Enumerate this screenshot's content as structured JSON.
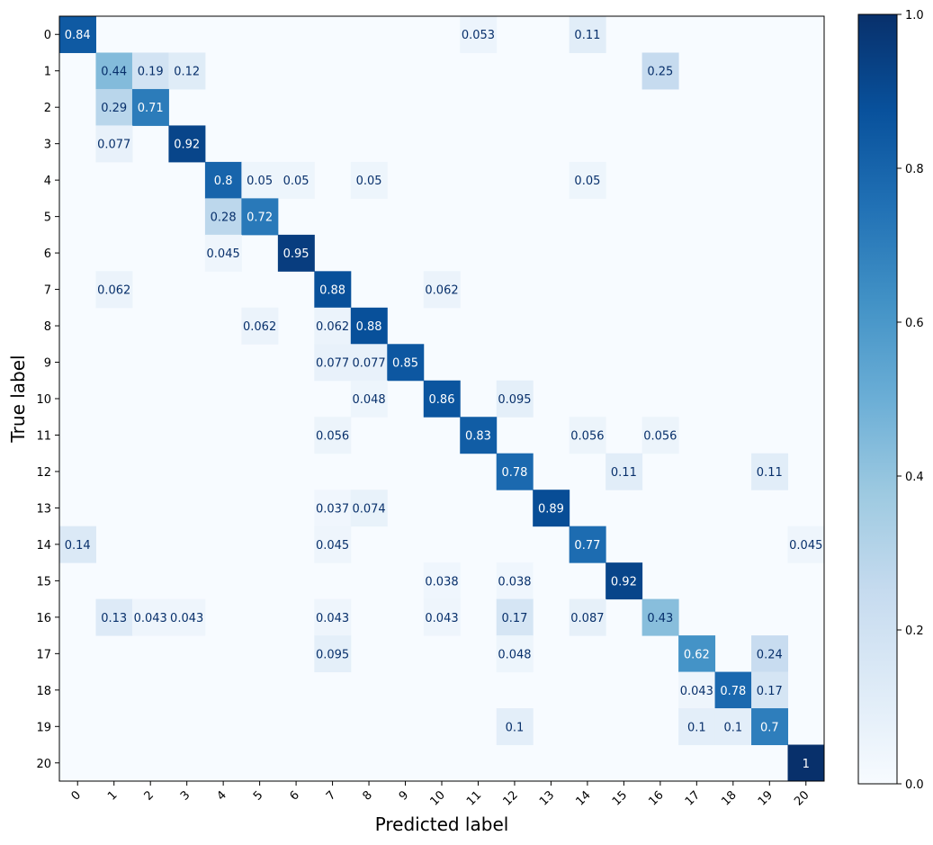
{
  "chart_data": {
    "type": "heatmap",
    "title": "",
    "xlabel": "Predicted label",
    "ylabel": "True label",
    "x_categories": [
      "0",
      "1",
      "2",
      "3",
      "4",
      "5",
      "6",
      "7",
      "8",
      "9",
      "10",
      "11",
      "12",
      "13",
      "14",
      "15",
      "16",
      "17",
      "18",
      "19",
      "20"
    ],
    "y_categories": [
      "0",
      "1",
      "2",
      "3",
      "4",
      "5",
      "6",
      "7",
      "8",
      "9",
      "10",
      "11",
      "12",
      "13",
      "14",
      "15",
      "16",
      "17",
      "18",
      "19",
      "20"
    ],
    "colormap": "Blues",
    "colormap_low": "#f7fbff",
    "colormap_high": "#08306b",
    "vmin": 0.0,
    "vmax": 1.0,
    "colorbar_ticks": [
      "0.0",
      "0.2",
      "0.4",
      "0.6",
      "0.8",
      "1.0"
    ],
    "cells": [
      {
        "row": 0,
        "col": 0,
        "value": 0.84,
        "label": "0.84"
      },
      {
        "row": 0,
        "col": 11,
        "value": 0.053,
        "label": "0.053"
      },
      {
        "row": 0,
        "col": 14,
        "value": 0.11,
        "label": "0.11"
      },
      {
        "row": 1,
        "col": 1,
        "value": 0.44,
        "label": "0.44"
      },
      {
        "row": 1,
        "col": 2,
        "value": 0.19,
        "label": "0.19"
      },
      {
        "row": 1,
        "col": 3,
        "value": 0.12,
        "label": "0.12"
      },
      {
        "row": 1,
        "col": 16,
        "value": 0.25,
        "label": "0.25"
      },
      {
        "row": 2,
        "col": 1,
        "value": 0.29,
        "label": "0.29"
      },
      {
        "row": 2,
        "col": 2,
        "value": 0.71,
        "label": "0.71"
      },
      {
        "row": 3,
        "col": 1,
        "value": 0.077,
        "label": "0.077"
      },
      {
        "row": 3,
        "col": 3,
        "value": 0.92,
        "label": "0.92"
      },
      {
        "row": 4,
        "col": 4,
        "value": 0.8,
        "label": "0.8"
      },
      {
        "row": 4,
        "col": 5,
        "value": 0.05,
        "label": "0.05"
      },
      {
        "row": 4,
        "col": 6,
        "value": 0.05,
        "label": "0.05"
      },
      {
        "row": 4,
        "col": 8,
        "value": 0.05,
        "label": "0.05"
      },
      {
        "row": 4,
        "col": 14,
        "value": 0.05,
        "label": "0.05"
      },
      {
        "row": 5,
        "col": 4,
        "value": 0.28,
        "label": "0.28"
      },
      {
        "row": 5,
        "col": 5,
        "value": 0.72,
        "label": "0.72"
      },
      {
        "row": 6,
        "col": 4,
        "value": 0.045,
        "label": "0.045"
      },
      {
        "row": 6,
        "col": 6,
        "value": 0.95,
        "label": "0.95"
      },
      {
        "row": 7,
        "col": 1,
        "value": 0.062,
        "label": "0.062"
      },
      {
        "row": 7,
        "col": 7,
        "value": 0.88,
        "label": "0.88"
      },
      {
        "row": 7,
        "col": 10,
        "value": 0.062,
        "label": "0.062"
      },
      {
        "row": 8,
        "col": 5,
        "value": 0.062,
        "label": "0.062"
      },
      {
        "row": 8,
        "col": 7,
        "value": 0.062,
        "label": "0.062"
      },
      {
        "row": 8,
        "col": 8,
        "value": 0.88,
        "label": "0.88"
      },
      {
        "row": 9,
        "col": 7,
        "value": 0.077,
        "label": "0.077"
      },
      {
        "row": 9,
        "col": 8,
        "value": 0.077,
        "label": "0.077"
      },
      {
        "row": 9,
        "col": 9,
        "value": 0.85,
        "label": "0.85"
      },
      {
        "row": 10,
        "col": 8,
        "value": 0.048,
        "label": "0.048"
      },
      {
        "row": 10,
        "col": 10,
        "value": 0.86,
        "label": "0.86"
      },
      {
        "row": 10,
        "col": 12,
        "value": 0.095,
        "label": "0.095"
      },
      {
        "row": 11,
        "col": 7,
        "value": 0.056,
        "label": "0.056"
      },
      {
        "row": 11,
        "col": 11,
        "value": 0.83,
        "label": "0.83"
      },
      {
        "row": 11,
        "col": 14,
        "value": 0.056,
        "label": "0.056"
      },
      {
        "row": 11,
        "col": 16,
        "value": 0.056,
        "label": "0.056"
      },
      {
        "row": 12,
        "col": 12,
        "value": 0.78,
        "label": "0.78"
      },
      {
        "row": 12,
        "col": 15,
        "value": 0.11,
        "label": "0.11"
      },
      {
        "row": 12,
        "col": 19,
        "value": 0.11,
        "label": "0.11"
      },
      {
        "row": 13,
        "col": 7,
        "value": 0.037,
        "label": "0.037"
      },
      {
        "row": 13,
        "col": 8,
        "value": 0.074,
        "label": "0.074"
      },
      {
        "row": 13,
        "col": 13,
        "value": 0.89,
        "label": "0.89"
      },
      {
        "row": 14,
        "col": 0,
        "value": 0.14,
        "label": "0.14"
      },
      {
        "row": 14,
        "col": 7,
        "value": 0.045,
        "label": "0.045"
      },
      {
        "row": 14,
        "col": 14,
        "value": 0.77,
        "label": "0.77"
      },
      {
        "row": 14,
        "col": 20,
        "value": 0.045,
        "label": "0.045"
      },
      {
        "row": 15,
        "col": 10,
        "value": 0.038,
        "label": "0.038"
      },
      {
        "row": 15,
        "col": 12,
        "value": 0.038,
        "label": "0.038"
      },
      {
        "row": 15,
        "col": 15,
        "value": 0.92,
        "label": "0.92"
      },
      {
        "row": 16,
        "col": 1,
        "value": 0.13,
        "label": "0.13"
      },
      {
        "row": 16,
        "col": 2,
        "value": 0.043,
        "label": "0.043"
      },
      {
        "row": 16,
        "col": 3,
        "value": 0.043,
        "label": "0.043"
      },
      {
        "row": 16,
        "col": 7,
        "value": 0.043,
        "label": "0.043"
      },
      {
        "row": 16,
        "col": 10,
        "value": 0.043,
        "label": "0.043"
      },
      {
        "row": 16,
        "col": 12,
        "value": 0.17,
        "label": "0.17"
      },
      {
        "row": 16,
        "col": 14,
        "value": 0.087,
        "label": "0.087"
      },
      {
        "row": 16,
        "col": 16,
        "value": 0.43,
        "label": "0.43"
      },
      {
        "row": 17,
        "col": 7,
        "value": 0.095,
        "label": "0.095"
      },
      {
        "row": 17,
        "col": 12,
        "value": 0.048,
        "label": "0.048"
      },
      {
        "row": 17,
        "col": 17,
        "value": 0.62,
        "label": "0.62"
      },
      {
        "row": 17,
        "col": 19,
        "value": 0.24,
        "label": "0.24"
      },
      {
        "row": 18,
        "col": 17,
        "value": 0.043,
        "label": "0.043"
      },
      {
        "row": 18,
        "col": 18,
        "value": 0.78,
        "label": "0.78"
      },
      {
        "row": 18,
        "col": 19,
        "value": 0.17,
        "label": "0.17"
      },
      {
        "row": 19,
        "col": 12,
        "value": 0.1,
        "label": "0.1"
      },
      {
        "row": 19,
        "col": 17,
        "value": 0.1,
        "label": "0.1"
      },
      {
        "row": 19,
        "col": 18,
        "value": 0.1,
        "label": "0.1"
      },
      {
        "row": 19,
        "col": 19,
        "value": 0.7,
        "label": "0.7"
      },
      {
        "row": 20,
        "col": 20,
        "value": 1.0,
        "label": "1"
      }
    ]
  }
}
